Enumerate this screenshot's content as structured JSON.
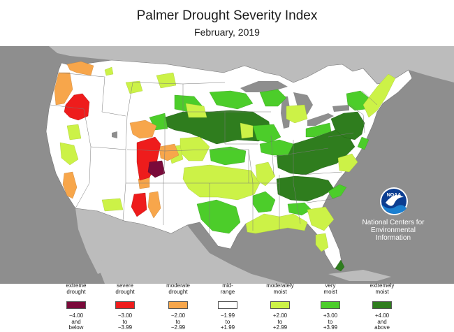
{
  "title": "Palmer Drought Severity Index",
  "subtitle": "February, 2019",
  "logo": {
    "text": "NOAA",
    "label_lines": [
      "National Centers for",
      "Environmental",
      "Information"
    ]
  },
  "colors": {
    "ocean": "#8e8e8e",
    "land_foreign": "#bcbcbc",
    "extreme_drought": "#7a0a3a",
    "severe_drought": "#ee1c1c",
    "moderate_drought": "#f7a64b",
    "mid_range": "#ffffff",
    "moderately_moist": "#ccf247",
    "very_moist": "#4ccd2a",
    "extremely_moist": "#2f7d1e"
  },
  "legend": [
    {
      "top": [
        "extreme",
        "drought"
      ],
      "bottom": [
        "−4.00",
        "and",
        "below"
      ],
      "color": "#7a0a3a"
    },
    {
      "top": [
        "severe",
        "drought"
      ],
      "bottom": [
        "−3.00",
        "to",
        "−3.99"
      ],
      "color": "#ee1c1c"
    },
    {
      "top": [
        "moderate",
        "drought"
      ],
      "bottom": [
        "−2.00",
        "to",
        "−2.99"
      ],
      "color": "#f7a64b"
    },
    {
      "top": [
        "mid-",
        "range"
      ],
      "bottom": [
        "−1.99",
        "to",
        "+1.99"
      ],
      "color": "#ffffff"
    },
    {
      "top": [
        "moderately",
        "moist"
      ],
      "bottom": [
        "+2.00",
        "to",
        "+2.99"
      ],
      "color": "#ccf247"
    },
    {
      "top": [
        "very",
        "moist"
      ],
      "bottom": [
        "+3.00",
        "to",
        "+3.99"
      ],
      "color": "#4ccd2a"
    },
    {
      "top": [
        "extremely",
        "moist"
      ],
      "bottom": [
        "+4.00",
        "and",
        "above"
      ],
      "color": "#2f7d1e"
    }
  ]
}
